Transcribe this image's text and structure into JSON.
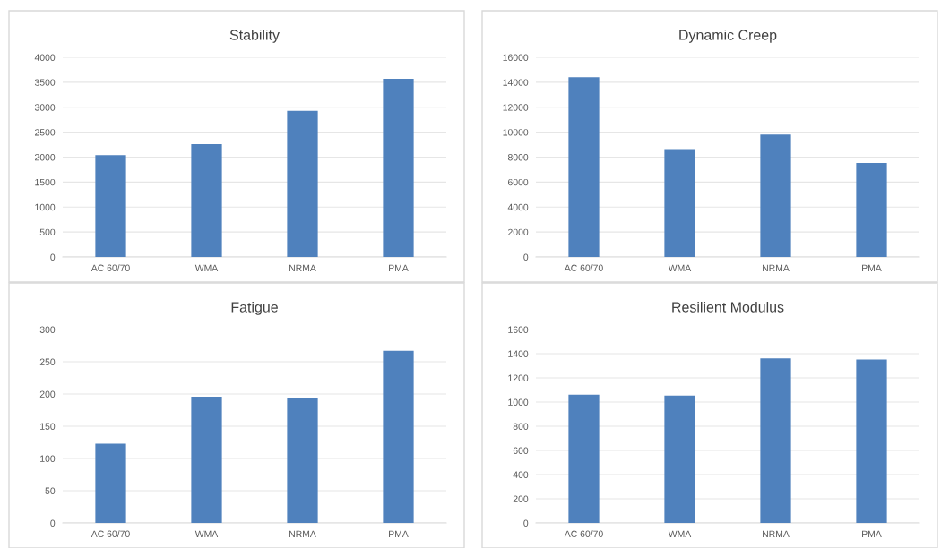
{
  "chart_data": [
    {
      "type": "bar",
      "title": "Stability",
      "categories": [
        "AC 60/70",
        "WMA",
        "NRMA",
        "PMA"
      ],
      "values": [
        2040,
        2260,
        2930,
        3570
      ],
      "color": "#4f81bd",
      "ylim": [
        0,
        4000
      ],
      "yticks": [
        0,
        500,
        1000,
        1500,
        2000,
        2500,
        3000,
        3500,
        4000
      ],
      "grid": "y"
    },
    {
      "type": "bar",
      "title": "Dynamic Creep",
      "categories": [
        "AC 60/70",
        "WMA",
        "NRMA",
        "PMA"
      ],
      "values": [
        14400,
        8640,
        9820,
        7530
      ],
      "color": "#4f81bd",
      "ylim": [
        0,
        16000
      ],
      "yticks": [
        0,
        2000,
        4000,
        6000,
        8000,
        10000,
        12000,
        14000,
        16000
      ],
      "grid": "y"
    },
    {
      "type": "bar",
      "title": "Fatigue",
      "categories": [
        "AC 60/70",
        "WMA",
        "NRMA",
        "PMA"
      ],
      "values": [
        123,
        196,
        194,
        267
      ],
      "color": "#4f81bd",
      "ylim": [
        0,
        300
      ],
      "yticks": [
        0,
        50,
        100,
        150,
        200,
        250,
        300
      ],
      "grid": "y"
    },
    {
      "type": "bar",
      "title": "Resilient Modulus",
      "categories": [
        "AC 60/70",
        "WMA",
        "NRMA",
        "PMA"
      ],
      "values": [
        1062,
        1053,
        1361,
        1351
      ],
      "color": "#4f81bd",
      "ylim": [
        0,
        1600
      ],
      "yticks": [
        0,
        200,
        400,
        600,
        800,
        1000,
        1200,
        1400,
        1600
      ],
      "grid": "y"
    }
  ]
}
